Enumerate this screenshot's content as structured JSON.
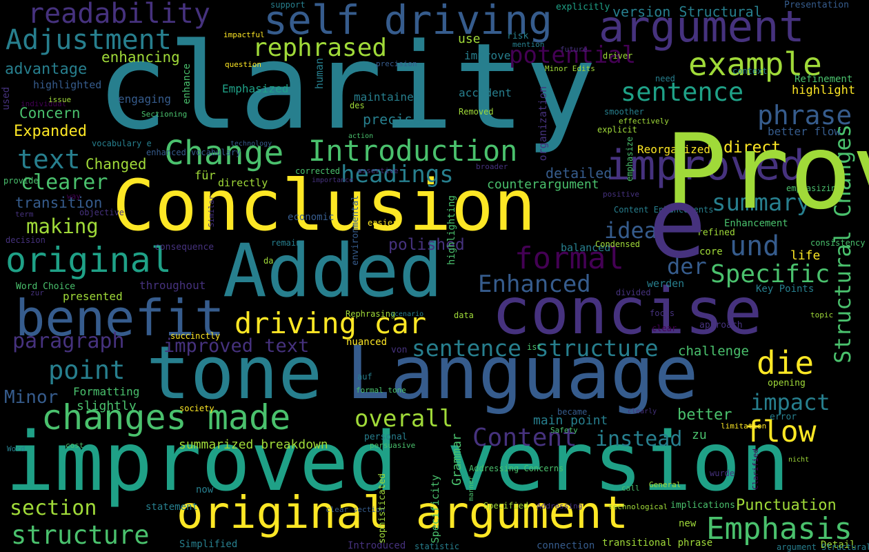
{
  "colors": {
    "background": "#000000",
    "palette": [
      "#440154",
      "#46327e",
      "#365c8d",
      "#277f8e",
      "#1fa187",
      "#4ac16d",
      "#a0da39",
      "#fde725"
    ]
  },
  "words": [
    {
      "t": "clarity",
      "c": "#277f8e"
    },
    {
      "t": "Conclusion",
      "c": "#fde725"
    },
    {
      "t": "improved version",
      "c": "#1fa187"
    },
    {
      "t": "tone",
      "c": "#277f8e"
    },
    {
      "t": "Language",
      "c": "#365c8d"
    },
    {
      "t": "Added",
      "c": "#277f8e"
    },
    {
      "t": "concise",
      "c": "#46327e"
    },
    {
      "t": "benefit",
      "c": "#365c8d"
    },
    {
      "t": "argument",
      "c": "#46327e"
    },
    {
      "t": "self driving",
      "c": "#365c8d"
    },
    {
      "t": "original argument",
      "c": "#fde725"
    },
    {
      "t": "changes made",
      "c": "#4ac16d"
    },
    {
      "t": "original",
      "c": "#1fa187"
    },
    {
      "t": "improved",
      "c": "#46327e"
    },
    {
      "t": "readability",
      "c": "#46327e"
    },
    {
      "t": "Change",
      "c": "#4ac16d"
    },
    {
      "t": "Introduction",
      "c": "#4ac16d"
    },
    {
      "t": "driving car",
      "c": "#fde725"
    },
    {
      "t": "sentence structure",
      "c": "#277f8e"
    },
    {
      "t": "Adjustment",
      "c": "#277f8e"
    },
    {
      "t": "example",
      "c": "#a0da39"
    },
    {
      "t": "rephrased",
      "c": "#a0da39"
    },
    {
      "t": "sentence",
      "c": "#1fa187"
    },
    {
      "t": "phrase",
      "c": "#365c8d"
    },
    {
      "t": "Structural Changes",
      "c": "#4ac16d"
    },
    {
      "t": "Emphasis",
      "c": "#4ac16d"
    },
    {
      "t": "structure",
      "c": "#4ac16d"
    },
    {
      "t": "section",
      "c": "#a0da39"
    },
    {
      "t": "point",
      "c": "#277f8e"
    },
    {
      "t": "paragraph",
      "c": "#46327e"
    },
    {
      "t": "Minor",
      "c": "#365c8d"
    },
    {
      "t": "text",
      "c": "#277f8e"
    },
    {
      "t": "headings",
      "c": "#277f8e"
    },
    {
      "t": "summary",
      "c": "#277f8e"
    },
    {
      "t": "und",
      "c": "#365c8d"
    },
    {
      "t": "formal",
      "c": "#440154"
    },
    {
      "t": "Enhanced",
      "c": "#365c8d"
    },
    {
      "t": "die",
      "c": "#fde725"
    },
    {
      "t": "flow",
      "c": "#fde725"
    },
    {
      "t": "Content",
      "c": "#46327e"
    },
    {
      "t": "overall",
      "c": "#a0da39"
    },
    {
      "t": "impact",
      "c": "#277f8e"
    },
    {
      "t": "instead",
      "c": "#277f8e"
    },
    {
      "t": "Specific",
      "c": "#4ac16d"
    },
    {
      "t": "der",
      "c": "#365c8d"
    },
    {
      "t": "idea",
      "c": "#365c8d"
    },
    {
      "t": "potential",
      "c": "#440154"
    },
    {
      "t": "clearer",
      "c": "#4ac16d"
    },
    {
      "t": "making",
      "c": "#a0da39"
    },
    {
      "t": "advantage",
      "c": "#277f8e"
    },
    {
      "t": "enhancing",
      "c": "#a0da39"
    },
    {
      "t": "transition",
      "c": "#365c8d"
    },
    {
      "t": "improved text",
      "c": "#46327e"
    },
    {
      "t": "Concern",
      "c": "#4ac16d"
    },
    {
      "t": "Expanded",
      "c": "#fde725"
    },
    {
      "t": "Changed",
      "c": "#a0da39"
    },
    {
      "t": "polished",
      "c": "#46327e"
    },
    {
      "t": "better",
      "c": "#4ac16d"
    },
    {
      "t": "Punctuation",
      "c": "#a0da39"
    },
    {
      "t": "summarized breakdown",
      "c": "#a0da39"
    },
    {
      "t": "main point",
      "c": "#277f8e"
    },
    {
      "t": "direct",
      "c": "#fde725"
    },
    {
      "t": "precise",
      "c": "#277f8e"
    },
    {
      "t": "detailed",
      "c": "#365c8d"
    },
    {
      "t": "counterargument",
      "c": "#4ac16d"
    },
    {
      "t": "challenge",
      "c": "#4ac16d"
    },
    {
      "t": "use",
      "c": "#a0da39"
    },
    {
      "t": "improve",
      "c": "#277f8e"
    },
    {
      "t": "highlight",
      "c": "#fde725"
    },
    {
      "t": "better flow",
      "c": "#365c8d"
    },
    {
      "t": "Reorganized",
      "c": "#fde725"
    },
    {
      "t": "life",
      "c": "#fde725"
    },
    {
      "t": "zu",
      "c": "#4ac16d"
    },
    {
      "t": "Emphasized",
      "c": "#1fa187"
    },
    {
      "t": "maintained",
      "c": "#277f8e"
    },
    {
      "t": "accident",
      "c": "#277f8e"
    },
    {
      "t": "balanced",
      "c": "#277f8e"
    },
    {
      "t": "engaging",
      "c": "#365c8d"
    },
    {
      "t": "highlighted",
      "c": "#365c8d"
    },
    {
      "t": "throughout",
      "c": "#46327e"
    },
    {
      "t": "presented",
      "c": "#a0da39"
    },
    {
      "t": "slightly",
      "c": "#4ac16d"
    },
    {
      "t": "Formatting",
      "c": "#4ac16d"
    },
    {
      "t": "für",
      "c": "#a0da39"
    },
    {
      "t": "directly",
      "c": "#a0da39"
    },
    {
      "t": "Enhancement",
      "c": "#4ac16d"
    },
    {
      "t": "Refinement",
      "c": "#4ac16d"
    },
    {
      "t": "version Structural",
      "c": "#277f8e"
    },
    {
      "t": "werden",
      "c": "#277f8e"
    },
    {
      "t": "core",
      "c": "#a0da39"
    },
    {
      "t": "Key Points",
      "c": "#277f8e"
    },
    {
      "t": "Word Choice",
      "c": "#4ac16d"
    },
    {
      "t": "Simplified",
      "c": "#277f8e"
    },
    {
      "t": "Introduced",
      "c": "#46327e"
    },
    {
      "t": "Detail",
      "c": "#a0da39"
    },
    {
      "t": "transitional phrase",
      "c": "#a0da39"
    },
    {
      "t": "connection",
      "c": "#365c8d"
    },
    {
      "t": "statement",
      "c": "#277f8e"
    },
    {
      "t": "now",
      "c": "#277f8e"
    },
    {
      "t": "new",
      "c": "#a0da39"
    },
    {
      "t": "Presentation",
      "c": "#365c8d"
    },
    {
      "t": "explicitly",
      "c": "#1fa187"
    },
    {
      "t": "risk",
      "c": "#277f8e"
    },
    {
      "t": "support",
      "c": "#277f8e"
    },
    {
      "t": "impactful",
      "c": "#fde725"
    },
    {
      "t": "mention",
      "c": "#277f8e"
    },
    {
      "t": "future",
      "c": "#46327e"
    },
    {
      "t": "driver",
      "c": "#a0da39"
    },
    {
      "t": "question",
      "c": "#fde725"
    },
    {
      "t": "precision",
      "c": "#365c8d"
    },
    {
      "t": "Minor Edits",
      "c": "#a0da39"
    },
    {
      "t": "context",
      "c": "#277f8e"
    },
    {
      "t": "need",
      "c": "#277f8e"
    },
    {
      "t": "individual",
      "c": "#440154"
    },
    {
      "t": "issue",
      "c": "#a0da39"
    },
    {
      "t": "des",
      "c": "#a0da39"
    },
    {
      "t": "Removed",
      "c": "#a0da39"
    },
    {
      "t": "Sectioning",
      "c": "#4ac16d"
    },
    {
      "t": "smoother",
      "c": "#277f8e"
    },
    {
      "t": "effectively",
      "c": "#a0da39"
    },
    {
      "t": "explicit",
      "c": "#a0da39"
    },
    {
      "t": "vocabulary e",
      "c": "#277f8e"
    },
    {
      "t": "technology",
      "c": "#365c8d"
    },
    {
      "t": "enhanced vocabulary",
      "c": "#365c8d"
    },
    {
      "t": "action",
      "c": "#4ac16d"
    },
    {
      "t": "broader",
      "c": "#46327e"
    },
    {
      "t": "corrected",
      "c": "#4ac16d"
    },
    {
      "t": "assertive",
      "c": "#46327e"
    },
    {
      "t": "importance",
      "c": "#46327e"
    },
    {
      "t": "positive",
      "c": "#46327e"
    },
    {
      "t": "refined",
      "c": "#a0da39"
    },
    {
      "t": "emphasizing",
      "c": "#4ac16d"
    },
    {
      "t": "provide",
      "c": "#4ac16d"
    },
    {
      "t": "way",
      "c": "#440154"
    },
    {
      "t": "term",
      "c": "#46327e"
    },
    {
      "t": "objective",
      "c": "#46327e"
    },
    {
      "t": "decision",
      "c": "#46327e"
    },
    {
      "t": "economic",
      "c": "#365c8d"
    },
    {
      "t": "easier",
      "c": "#fde725"
    },
    {
      "t": "consequence",
      "c": "#46327e"
    },
    {
      "t": "remain",
      "c": "#277f8e"
    },
    {
      "t": "Condensed",
      "c": "#a0da39"
    },
    {
      "t": "Content Enhancements",
      "c": "#277f8e"
    },
    {
      "t": "consistency",
      "c": "#4ac16d"
    },
    {
      "t": "da",
      "c": "#a0da39"
    },
    {
      "t": "zur",
      "c": "#46327e"
    },
    {
      "t": "divided",
      "c": "#46327e"
    },
    {
      "t": "Rephrasing",
      "c": "#a0da39"
    },
    {
      "t": "scenario",
      "c": "#277f8e"
    },
    {
      "t": "data",
      "c": "#a0da39"
    },
    {
      "t": "focus",
      "c": "#46327e"
    },
    {
      "t": "topic",
      "c": "#a0da39"
    },
    {
      "t": "clear",
      "c": "#440154"
    },
    {
      "t": "approach",
      "c": "#46327e"
    },
    {
      "t": "succinctly",
      "c": "#fde725"
    },
    {
      "t": "nuanced",
      "c": "#fde725"
    },
    {
      "t": "von",
      "c": "#46327e"
    },
    {
      "t": "ist",
      "c": "#4ac16d"
    },
    {
      "t": "auf",
      "c": "#277f8e"
    },
    {
      "t": "formal tone",
      "c": "#4ac16d"
    },
    {
      "t": "opening",
      "c": "#a0da39"
    },
    {
      "t": "error",
      "c": "#277f8e"
    },
    {
      "t": "became",
      "c": "#365c8d"
    },
    {
      "t": "Safety",
      "c": "#4ac16d"
    },
    {
      "t": "clearly",
      "c": "#46327e"
    },
    {
      "t": "society",
      "c": "#fde725"
    },
    {
      "t": "personal",
      "c": "#277f8e"
    },
    {
      "t": "persuasive",
      "c": "#4ac16d"
    },
    {
      "t": "limitation",
      "c": "#fde725"
    },
    {
      "t": "Clarified",
      "c": "#440154"
    },
    {
      "t": "nicht",
      "c": "#a0da39"
    },
    {
      "t": "wurde",
      "c": "#46327e"
    },
    {
      "t": "Word",
      "c": "#277f8e"
    },
    {
      "t": "cost",
      "c": "#4ac16d"
    },
    {
      "t": "Addressing Concerns",
      "c": "#4ac16d"
    },
    {
      "t": "call",
      "c": "#4ac16d"
    },
    {
      "t": "General",
      "c": "#a0da39"
    },
    {
      "t": "Specified",
      "c": "#a0da39"
    },
    {
      "t": "Addressing",
      "c": "#46327e"
    },
    {
      "t": "technological",
      "c": "#a0da39"
    },
    {
      "t": "implications",
      "c": "#4ac16d"
    },
    {
      "t": "clear section",
      "c": "#365c8d"
    },
    {
      "t": "statistic",
      "c": "#277f8e"
    },
    {
      "t": "argument Structural",
      "c": "#277f8e"
    },
    {
      "t": "enhance",
      "c": "#4ac16d"
    },
    {
      "t": "human",
      "c": "#277f8e"
    },
    {
      "t": "used",
      "c": "#46327e"
    },
    {
      "t": "organization",
      "c": "#46327e"
    },
    {
      "t": "emphasize",
      "c": "#4ac16d"
    },
    {
      "t": "Similar",
      "c": "#46327e"
    },
    {
      "t": "environmental",
      "c": "#365c8d"
    },
    {
      "t": "highlighting",
      "c": "#4ac16d"
    },
    {
      "t": "Grammar",
      "c": "#4ac16d"
    },
    {
      "t": "Specificity",
      "c": "#4ac16d"
    },
    {
      "t": "manner",
      "c": "#4ac16d"
    },
    {
      "t": "sophisticated",
      "c": "#a0da39"
    },
    {
      "t": "Provided",
      "c": "#a0da39"
    },
    {
      "t": "e",
      "c": "#46327e"
    },
    {
      "t": "&",
      "c": "#440154"
    }
  ]
}
